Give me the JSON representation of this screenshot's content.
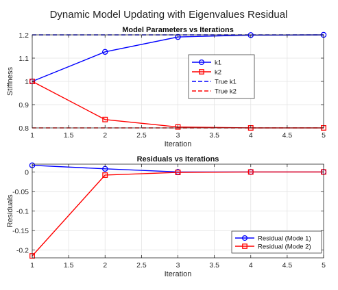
{
  "figure": {
    "title": "Dynamic Model Updating with Eigenvalues Residual"
  },
  "chart_data": [
    {
      "type": "line",
      "title": "Model Parameters vs Iterations",
      "xlabel": "Iteration",
      "ylabel": "Stiffness",
      "xlim": [
        1,
        5
      ],
      "ylim": [
        0.8,
        1.2
      ],
      "xticks": [
        "1",
        "1.5",
        "2",
        "2.5",
        "3",
        "3.5",
        "4",
        "4.5",
        "5"
      ],
      "yticks": [
        "0.8",
        "0.9",
        "1",
        "1.1",
        "1.2"
      ],
      "grid": true,
      "legend_position": "upper-middle",
      "x": [
        1,
        2,
        3,
        4,
        5
      ],
      "series": [
        {
          "name": "k1",
          "color": "#0000ff",
          "marker": "circle",
          "style": "solid",
          "values": [
            1.0,
            1.127,
            1.191,
            1.199,
            1.2
          ]
        },
        {
          "name": "k2",
          "color": "#ff0000",
          "marker": "square",
          "style": "solid",
          "values": [
            1.0,
            0.836,
            0.804,
            0.8,
            0.8
          ]
        },
        {
          "name": "True k1",
          "color": "#0000ff",
          "marker": "none",
          "style": "dashed",
          "values": [
            1.2,
            1.2,
            1.2,
            1.2,
            1.2
          ]
        },
        {
          "name": "True k2",
          "color": "#ff0000",
          "marker": "none",
          "style": "dashed",
          "values": [
            0.8,
            0.8,
            0.8,
            0.8,
            0.8
          ]
        }
      ]
    },
    {
      "type": "line",
      "title": "Residuals vs Iterations",
      "xlabel": "Iteration",
      "ylabel": "Residuals",
      "xlim": [
        1,
        5
      ],
      "ylim": [
        -0.22,
        0.02
      ],
      "xticks": [
        "1",
        "1.5",
        "2",
        "2.5",
        "3",
        "3.5",
        "4",
        "4.5",
        "5"
      ],
      "yticks": [
        "-0.2",
        "-0.15",
        "-0.1",
        "-0.05",
        "0"
      ],
      "grid": true,
      "legend_position": "bottom-right",
      "x": [
        1,
        2,
        3,
        4,
        5
      ],
      "series": [
        {
          "name": "Residual (Mode 1)",
          "color": "#0000ff",
          "marker": "circle",
          "style": "solid",
          "values": [
            0.017,
            0.008,
            0.0,
            0.0,
            0.0
          ]
        },
        {
          "name": "Residual (Mode 2)",
          "color": "#ff0000",
          "marker": "square",
          "style": "solid",
          "values": [
            -0.215,
            -0.008,
            -0.001,
            0.0,
            0.0
          ]
        }
      ]
    }
  ]
}
